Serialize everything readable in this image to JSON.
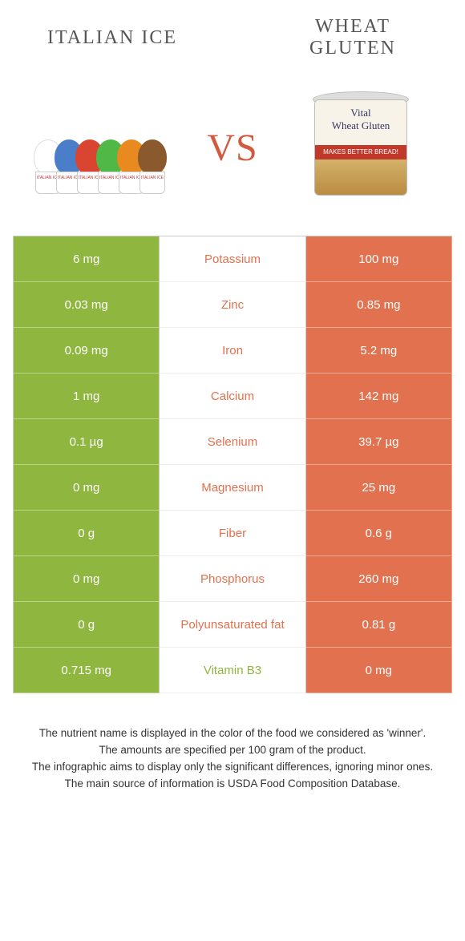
{
  "colors": {
    "left": "#8fb63f",
    "right": "#e2714f",
    "vs": "#d25b3f",
    "title": "#555555"
  },
  "header": {
    "left_title": "Italian ice",
    "right_title": "Wheat gluten",
    "vs": "VS"
  },
  "ice_colors": [
    "#ffffff",
    "#4a7ec9",
    "#d94530",
    "#4fb847",
    "#e88a1f",
    "#8a5a2e"
  ],
  "can": {
    "line1": "Vital",
    "line2": "Wheat Gluten",
    "banner": "MAKES BETTER BREAD!"
  },
  "rows": [
    {
      "left": "6 mg",
      "label": "Potassium",
      "right": "100 mg",
      "winner": "right"
    },
    {
      "left": "0.03 mg",
      "label": "Zinc",
      "right": "0.85 mg",
      "winner": "right"
    },
    {
      "left": "0.09 mg",
      "label": "Iron",
      "right": "5.2 mg",
      "winner": "right"
    },
    {
      "left": "1 mg",
      "label": "Calcium",
      "right": "142 mg",
      "winner": "right"
    },
    {
      "left": "0.1 µg",
      "label": "Selenium",
      "right": "39.7 µg",
      "winner": "right"
    },
    {
      "left": "0 mg",
      "label": "Magnesium",
      "right": "25 mg",
      "winner": "right"
    },
    {
      "left": "0 g",
      "label": "Fiber",
      "right": "0.6 g",
      "winner": "right"
    },
    {
      "left": "0 mg",
      "label": "Phosphorus",
      "right": "260 mg",
      "winner": "right"
    },
    {
      "left": "0 g",
      "label": "Polyunsaturated fat",
      "right": "0.81 g",
      "winner": "right"
    },
    {
      "left": "0.715 mg",
      "label": "Vitamin B3",
      "right": "0 mg",
      "winner": "left"
    }
  ],
  "footnotes": [
    "The nutrient name is displayed in the color of the food we considered as 'winner'.",
    "The amounts are specified per 100 gram of the product.",
    "The infographic aims to display only the significant differences, ignoring minor ones.",
    "The main source of information is USDA Food Composition Database."
  ]
}
